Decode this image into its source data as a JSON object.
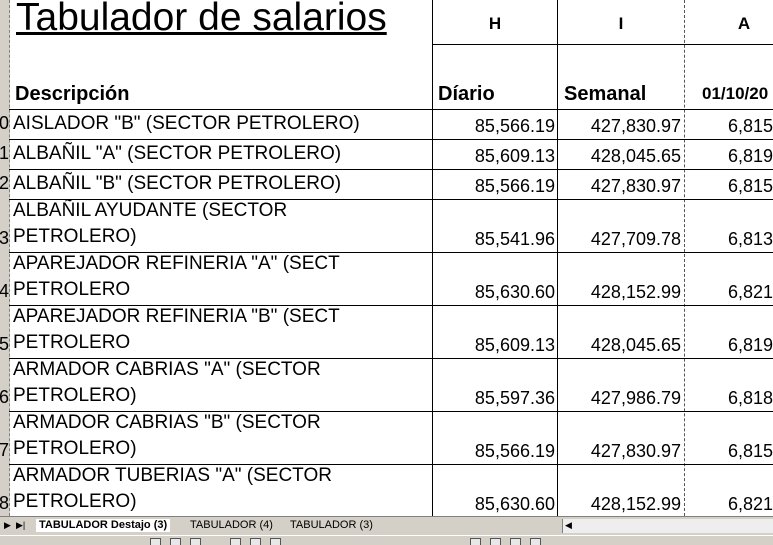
{
  "title": "Tabulador de salarios",
  "columns": {
    "h": "H",
    "i": "I",
    "a": "A"
  },
  "headers": {
    "descripcion": "Descripción",
    "diario": "Díario",
    "semanal": "Semanal",
    "date": "01/10/20"
  },
  "row_numbers": [
    "0",
    "1",
    "2",
    "3",
    "4",
    "5",
    "6",
    "7",
    "8"
  ],
  "rows": [
    {
      "desc1": "AISLADOR \"B\" (SECTOR PETROLERO)",
      "desc2": "",
      "diario": "85,566.19",
      "semanal": "427,830.97",
      "a": "6,815"
    },
    {
      "desc1": "ALBAÑIL \"A\"  (SECTOR PETROLERO)",
      "desc2": "",
      "diario": "85,609.13",
      "semanal": "428,045.65",
      "a": "6,819"
    },
    {
      "desc1": "ALBAÑIL \"B\" (SECTOR PETROLERO)",
      "desc2": "",
      "diario": "85,566.19",
      "semanal": "427,830.97",
      "a": "6,815"
    },
    {
      "desc1": "ALBAÑIL AYUDANTE (SECTOR",
      "desc2": "PETROLERO)",
      "diario": "85,541.96",
      "semanal": "427,709.78",
      "a": "6,813"
    },
    {
      "desc1": "APAREJADOR REFINERIA \"A\" (SECT",
      "desc2": "PETROLERO",
      "diario": "85,630.60",
      "semanal": "428,152.99",
      "a": "6,821"
    },
    {
      "desc1": "APAREJADOR REFINERIA \"B\" (SECT",
      "desc2": "PETROLERO",
      "diario": "85,609.13",
      "semanal": "428,045.65",
      "a": "6,819"
    },
    {
      "desc1": "ARMADOR CABRIAS \"A\" (SECTOR",
      "desc2": "PETROLERO)",
      "diario": "85,597.36",
      "semanal": "427,986.79",
      "a": "6,818"
    },
    {
      "desc1": "ARMADOR CABRIAS \"B\" (SECTOR",
      "desc2": "PETROLERO)",
      "diario": "85,566.19",
      "semanal": "427,830.97",
      "a": "6,815"
    },
    {
      "desc1": "ARMADOR TUBERIAS \"A\" (SECTOR",
      "desc2": "PETROLERO)",
      "diario": "85,630.60",
      "semanal": "428,152.99",
      "a": "6,821"
    }
  ],
  "sheet_tabs": [
    "TABULADOR Destajo (3)",
    "TABULADOR (4)",
    "TABULADOR (3)"
  ]
}
